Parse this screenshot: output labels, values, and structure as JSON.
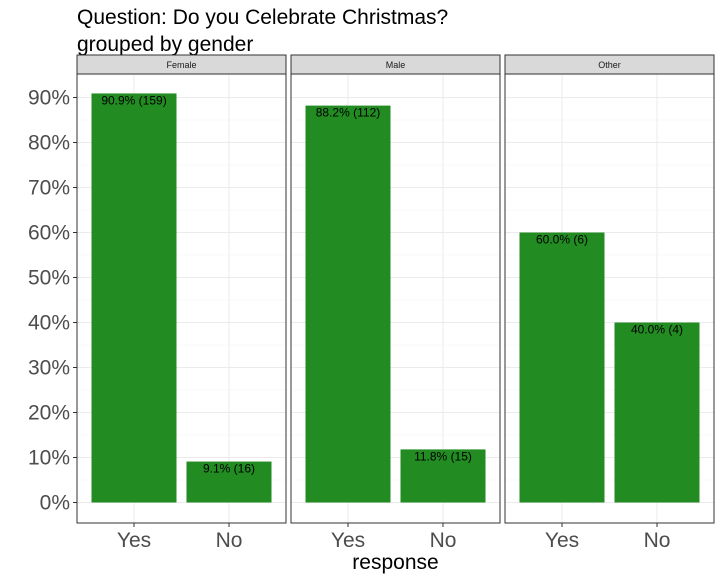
{
  "chart_data": {
    "type": "bar",
    "title": "Question: Do you Celebrate Christmas?",
    "subtitle": "grouped by gender",
    "xlabel": "response",
    "ylabel": "",
    "ylim": [
      0,
      0.95
    ],
    "yticks": [
      "0%",
      "10%",
      "20%",
      "30%",
      "40%",
      "50%",
      "60%",
      "70%",
      "80%",
      "90%"
    ],
    "grid": true,
    "bar_color": "#228b22",
    "categories": [
      "Yes",
      "No"
    ],
    "facets": [
      {
        "name": "Female",
        "values": [
          0.909,
          0.091
        ],
        "labels": [
          "90.9% (159)",
          "9.1% (16)"
        ]
      },
      {
        "name": "Male",
        "values": [
          0.882,
          0.118
        ],
        "labels": [
          "88.2% (112)",
          "11.8% (15)"
        ]
      },
      {
        "name": "Other",
        "values": [
          0.6,
          0.4
        ],
        "labels": [
          "60.0% (6)",
          "40.0% (4)"
        ]
      }
    ]
  }
}
